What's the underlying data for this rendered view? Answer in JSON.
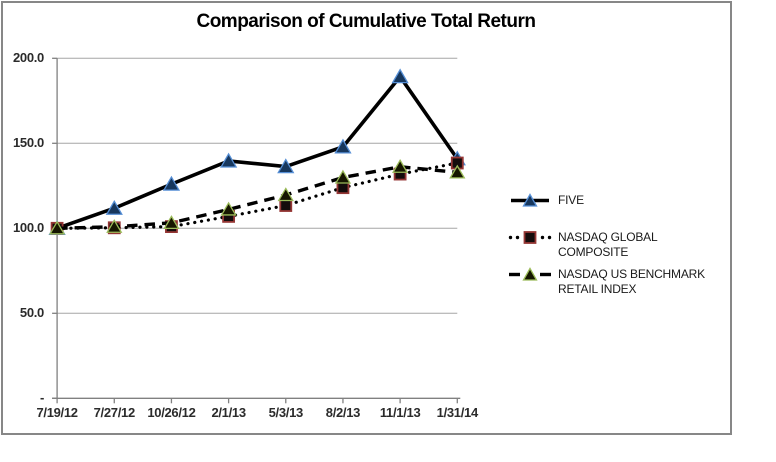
{
  "window": {
    "background": "#ffffff",
    "frame_border_color": "#878787"
  },
  "chart_data": {
    "type": "line",
    "title": "Comparison of Cumulative Total Return",
    "x_categories": [
      "7/19/12",
      "7/27/12",
      "10/26/12",
      "2/1/13",
      "5/3/13",
      "8/2/13",
      "11/1/13",
      "1/31/14"
    ],
    "y_tick_labels": [
      "200.0",
      "150.0",
      "100.0",
      "50.0",
      "-"
    ],
    "y_tick_values": [
      200,
      150,
      100,
      50,
      0
    ],
    "ylim": [
      0,
      200
    ],
    "grid": true,
    "gridline_color": "#a6a6a6",
    "axis_color": "#808080",
    "legend_position": "right",
    "series": [
      {
        "name": "FIVE",
        "line_style": "solid",
        "line_color": "#000000",
        "marker": "triangle",
        "marker_fill": "#17375d",
        "marker_stroke": "#558ed5",
        "values": [
          100.0,
          111.8,
          126.0,
          139.6,
          136.3,
          147.9,
          189.2,
          140.9
        ]
      },
      {
        "name": "NASDAQ GLOBAL COMPOSITE",
        "line_style": "dotted",
        "line_color": "#000000",
        "marker": "square",
        "marker_fill": "#140c0c",
        "marker_stroke": "#953735",
        "values": [
          100.0,
          100.3,
          101.0,
          107.0,
          113.4,
          123.9,
          131.9,
          138.4
        ]
      },
      {
        "name": "NASDAQ US BENCHMARK RETAIL INDEX",
        "line_style": "dashed",
        "line_color": "#000000",
        "marker": "triangle",
        "marker_fill": "#161600",
        "marker_stroke": "#9bbb59",
        "values": [
          100.0,
          100.9,
          103.2,
          111.1,
          119.6,
          129.9,
          136.2,
          132.9
        ]
      }
    ]
  }
}
